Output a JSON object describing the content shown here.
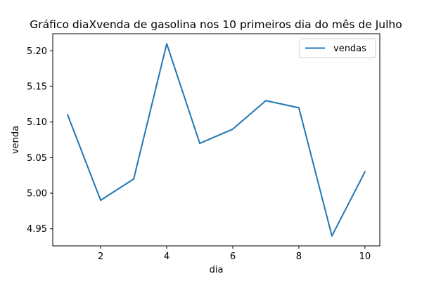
{
  "chart_data": {
    "type": "line",
    "title": "Gráfico diaXvenda de gasolina nos 10 primeiros dia do mês de Julho",
    "xlabel": "dia",
    "ylabel": "venda",
    "x": [
      1,
      2,
      3,
      4,
      5,
      6,
      7,
      8,
      9,
      10
    ],
    "series": [
      {
        "name": "vendas",
        "color": "#1f77b4",
        "values": [
          5.11,
          4.99,
          5.02,
          5.21,
          5.07,
          5.09,
          5.13,
          5.12,
          4.94,
          5.03
        ]
      }
    ],
    "xlim": [
      0.55,
      10.45
    ],
    "ylim": [
      4.926,
      5.224
    ],
    "x_ticks": [
      2,
      4,
      6,
      8,
      10
    ],
    "x_tick_labels": [
      "2",
      "4",
      "6",
      "8",
      "10"
    ],
    "y_ticks": [
      4.95,
      5.0,
      5.05,
      5.1,
      5.15,
      5.2
    ],
    "y_tick_labels": [
      "4.95",
      "5.00",
      "5.05",
      "5.10",
      "5.15",
      "5.20"
    ],
    "grid": false,
    "legend_position": "upper right"
  }
}
